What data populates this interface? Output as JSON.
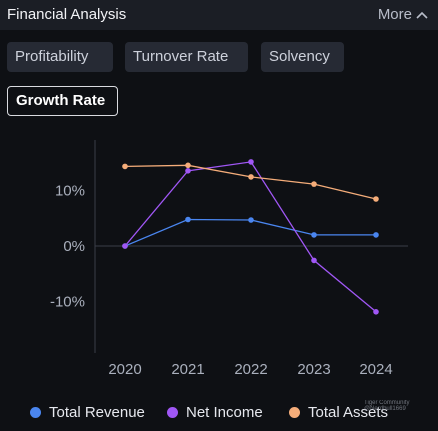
{
  "header": {
    "title": "Financial Analysis",
    "more_label": "More"
  },
  "tabs": [
    {
      "label": "Profitability"
    },
    {
      "label": "Turnover Rate"
    },
    {
      "label": "Solvency"
    },
    {
      "label": "Growth Rate",
      "active": true
    }
  ],
  "chart_data": {
    "type": "line",
    "x": [
      "2020",
      "2021",
      "2022",
      "2023",
      "2024"
    ],
    "y_ticks": [
      "10%",
      "0%",
      "-10%"
    ],
    "series": [
      {
        "name": "Total Revenue",
        "color": "#4a86f0",
        "values": [
          0,
          4.8,
          4.7,
          2.0,
          2.0
        ]
      },
      {
        "name": "Net Income",
        "color": "#a057f5",
        "values": [
          0,
          13.6,
          15.2,
          -2.6,
          -11.9
        ]
      },
      {
        "name": "Total Assets",
        "color": "#f5ad7a",
        "values": [
          14.4,
          14.6,
          12.5,
          11.2,
          8.5
        ]
      }
    ]
  },
  "watermark": {
    "line1": "Tiger Community",
    "line2": "@Nerdbull1669"
  }
}
